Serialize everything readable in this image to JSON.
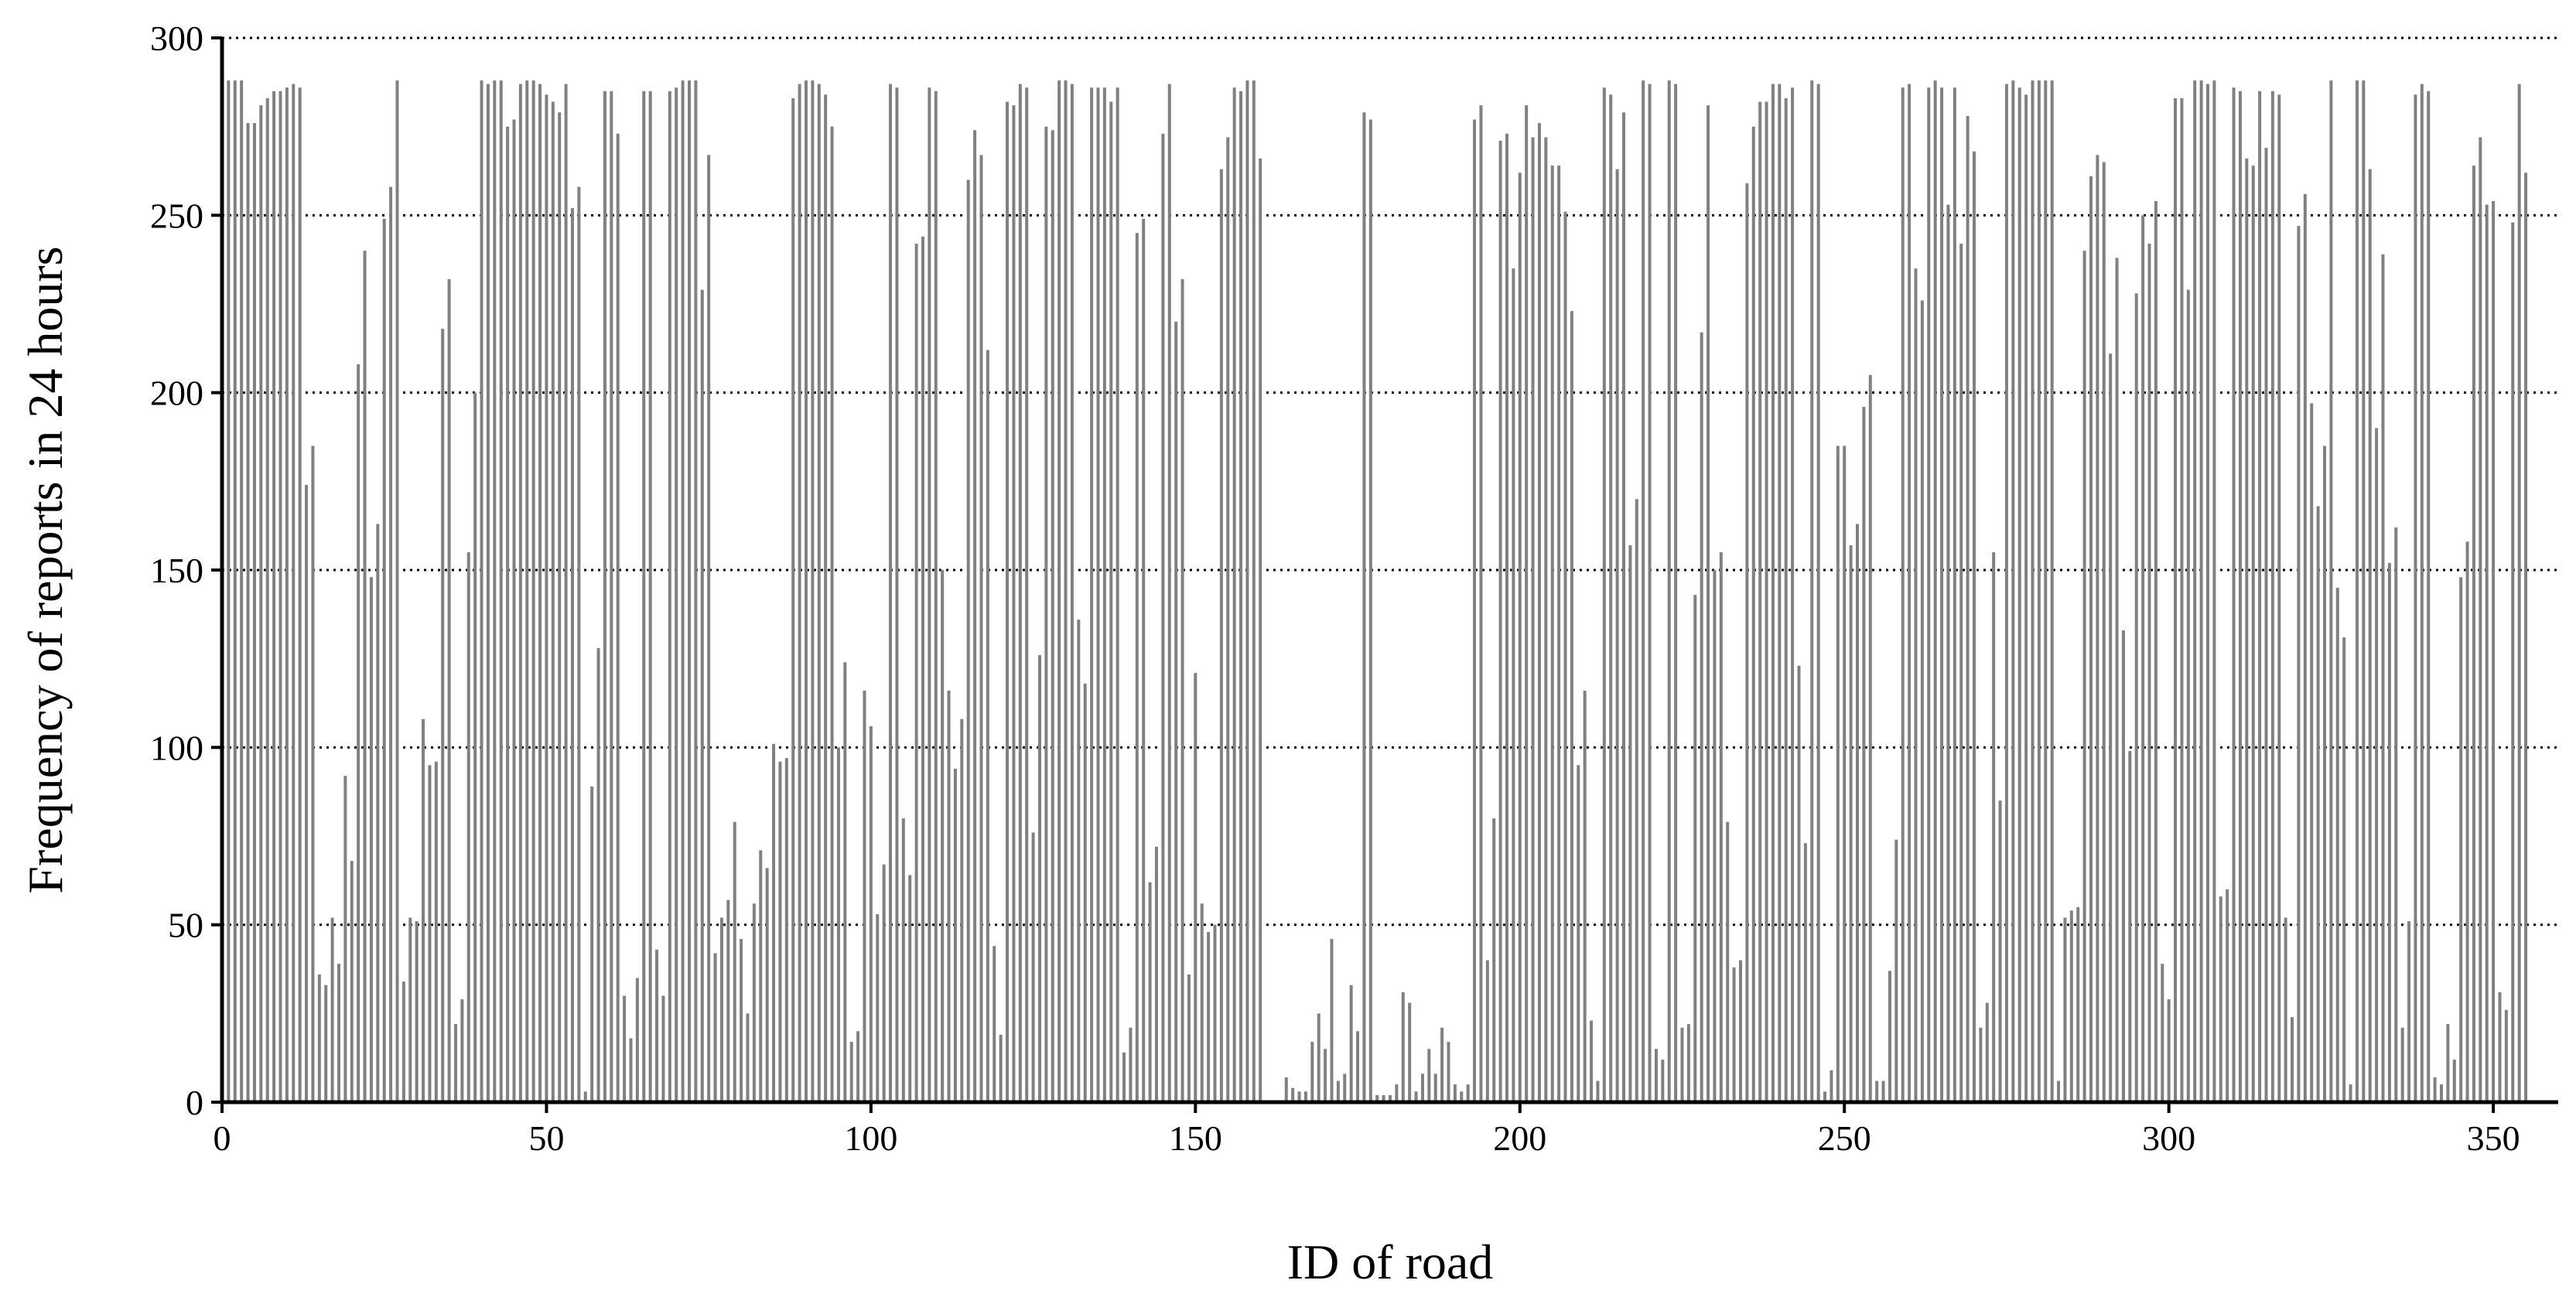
{
  "chart_data": {
    "type": "bar",
    "x_label": "ID of road",
    "y_label": "Frequency of reports in 24 hours",
    "color": "#808080",
    "grid": true,
    "xlim": [
      0,
      360
    ],
    "xticks": [
      0,
      50,
      100,
      150,
      200,
      250,
      300,
      350
    ],
    "ylim": [
      0,
      300
    ],
    "yticks": [
      0,
      50,
      100,
      150,
      200,
      250,
      300
    ],
    "x": [
      1,
      2,
      3,
      4,
      5,
      6,
      7,
      8,
      9,
      10,
      11,
      12,
      13,
      14,
      15,
      16,
      17,
      18,
      19,
      20,
      21,
      22,
      23,
      24,
      25,
      26,
      27,
      28,
      29,
      30,
      31,
      32,
      33,
      34,
      35,
      36,
      37,
      38,
      39,
      40,
      41,
      42,
      43,
      44,
      45,
      46,
      47,
      48,
      49,
      50,
      51,
      52,
      53,
      54,
      55,
      56,
      57,
      58,
      59,
      60,
      61,
      62,
      63,
      64,
      65,
      66,
      67,
      68,
      69,
      70,
      71,
      72,
      73,
      74,
      75,
      76,
      77,
      78,
      79,
      80,
      81,
      82,
      83,
      84,
      85,
      86,
      87,
      88,
      89,
      90,
      91,
      92,
      93,
      94,
      95,
      96,
      97,
      98,
      99,
      100,
      101,
      102,
      103,
      104,
      105,
      106,
      107,
      108,
      109,
      110,
      111,
      112,
      113,
      114,
      115,
      116,
      117,
      118,
      119,
      120,
      121,
      122,
      123,
      124,
      125,
      126,
      127,
      128,
      129,
      130,
      131,
      132,
      133,
      134,
      135,
      136,
      137,
      138,
      139,
      140,
      141,
      142,
      143,
      144,
      145,
      146,
      147,
      148,
      149,
      150,
      151,
      152,
      153,
      154,
      155,
      156,
      157,
      158,
      159,
      160,
      161,
      162,
      163,
      164,
      165,
      166,
      167,
      168,
      169,
      170,
      171,
      172,
      173,
      174,
      175,
      176,
      177,
      178,
      179,
      180,
      181,
      182,
      183,
      184,
      185,
      186,
      187,
      188,
      189,
      190,
      191,
      192,
      193,
      194,
      195,
      196,
      197,
      198,
      199,
      200,
      201,
      202,
      203,
      204,
      205,
      206,
      207,
      208,
      209,
      210,
      211,
      212,
      213,
      214,
      215,
      216,
      217,
      218,
      219,
      220,
      221,
      222,
      223,
      224,
      225,
      226,
      227,
      228,
      229,
      230,
      231,
      232,
      233,
      234,
      235,
      236,
      237,
      238,
      239,
      240,
      241,
      242,
      243,
      244,
      245,
      246,
      247,
      248,
      249,
      250,
      251,
      252,
      253,
      254,
      255,
      256,
      257,
      258,
      259,
      260,
      261,
      262,
      263,
      264,
      265,
      266,
      267,
      268,
      269,
      270,
      271,
      272,
      273,
      274,
      275,
      276,
      277,
      278,
      279,
      280,
      281,
      282,
      283,
      284,
      285,
      286,
      287,
      288,
      289,
      290,
      291,
      292,
      293,
      294,
      295,
      296,
      297,
      298,
      299,
      300,
      301,
      302,
      303,
      304,
      305,
      306,
      307,
      308,
      309,
      310,
      311,
      312,
      313,
      314,
      315,
      316,
      317,
      318,
      319,
      320,
      321,
      322,
      323,
      324,
      325,
      326,
      327,
      328,
      329,
      330,
      331,
      332,
      333,
      334,
      335,
      336,
      337,
      338,
      339,
      340,
      341,
      342,
      343,
      344,
      345,
      346,
      347,
      348,
      349,
      350,
      351,
      352,
      353,
      354,
      355
    ],
    "values": [
      288,
      288,
      288,
      276,
      276,
      281,
      283,
      285,
      285,
      286,
      287,
      286,
      174,
      185,
      36,
      33,
      52,
      39,
      92,
      68,
      208,
      240,
      148,
      163,
      249,
      258,
      288,
      34,
      52,
      51,
      108,
      95,
      96,
      218,
      232,
      22,
      29,
      155,
      200,
      288,
      287,
      288,
      288,
      275,
      277,
      287,
      288,
      288,
      287,
      284,
      282,
      279,
      287,
      252,
      258,
      3,
      89,
      128,
      285,
      285,
      273,
      30,
      18,
      35,
      285,
      285,
      43,
      30,
      285,
      286,
      288,
      288,
      288,
      229,
      267,
      42,
      52,
      57,
      79,
      46,
      25,
      56,
      71,
      66,
      101,
      96,
      97,
      283,
      287,
      288,
      288,
      287,
      284,
      275,
      100,
      124,
      17,
      20,
      116,
      106,
      53,
      67,
      287,
      286,
      80,
      64,
      242,
      244,
      286,
      285,
      150,
      116,
      94,
      108,
      260,
      274,
      267,
      212,
      44,
      19,
      282,
      281,
      287,
      286,
      76,
      126,
      275,
      274,
      288,
      288,
      287,
      136,
      118,
      286,
      286,
      286,
      282,
      286,
      14,
      21,
      245,
      249,
      62,
      72,
      273,
      287,
      220,
      232,
      36,
      121,
      56,
      48,
      50,
      263,
      272,
      286,
      285,
      288,
      288,
      266,
      0,
      0,
      0,
      7,
      4,
      3,
      3,
      17,
      25,
      15,
      46,
      6,
      8,
      33,
      20,
      279,
      277,
      2,
      2,
      2,
      5,
      31,
      28,
      3,
      8,
      15,
      8,
      21,
      17,
      5,
      3,
      5,
      277,
      281,
      40,
      80,
      271,
      273,
      235,
      262,
      281,
      272,
      276,
      272,
      264,
      264,
      251,
      223,
      95,
      116,
      23,
      6,
      286,
      284,
      263,
      279,
      157,
      170,
      288,
      287,
      15,
      12,
      288,
      287,
      21,
      22,
      143,
      217,
      281,
      150,
      155,
      79,
      38,
      40,
      259,
      275,
      282,
      282,
      287,
      287,
      283,
      286,
      123,
      73,
      288,
      287,
      3,
      9,
      185,
      185,
      157,
      163,
      196,
      205,
      6,
      6,
      37,
      74,
      286,
      287,
      235,
      226,
      286,
      288,
      286,
      253,
      286,
      242,
      278,
      268,
      21,
      28,
      155,
      85,
      287,
      288,
      286,
      284,
      288,
      288,
      288,
      288,
      6,
      52,
      54,
      55,
      240,
      261,
      267,
      265,
      211,
      238,
      133,
      99,
      228,
      250,
      242,
      254,
      39,
      29,
      283,
      283,
      229,
      288,
      288,
      287,
      288,
      58,
      60,
      286,
      285,
      266,
      264,
      285,
      269,
      285,
      284,
      52,
      24,
      247,
      256,
      197,
      168,
      185,
      288,
      145,
      131,
      5,
      288,
      288,
      263,
      190,
      239,
      152,
      162,
      21,
      51,
      284,
      287,
      285,
      7,
      5,
      22,
      12,
      148,
      158,
      264,
      272,
      253,
      254,
      31,
      26,
      248,
      287,
      262
    ]
  }
}
